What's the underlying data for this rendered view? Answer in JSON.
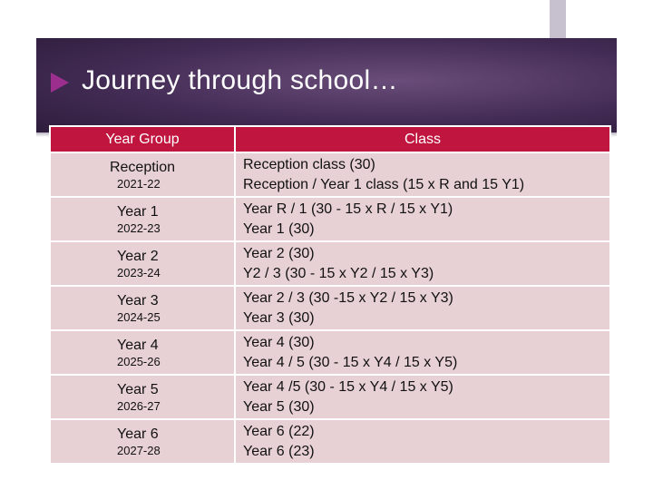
{
  "title": "Journey through school…",
  "table": {
    "headers": [
      "Year Group",
      "Class"
    ],
    "rows": [
      {
        "group": "Reception",
        "years": "2021-22",
        "classes": [
          "Reception class (30)",
          "Reception / Year 1 class (15 x R and 15 Y1)"
        ]
      },
      {
        "group": "Year 1",
        "years": "2022-23",
        "classes": [
          "Year R / 1 (30 - 15 x R / 15 x Y1)",
          "Year 1 (30)"
        ]
      },
      {
        "group": "Year 2",
        "years": "2023-24",
        "classes": [
          "Year 2 (30)",
          "Y2 / 3 (30 - 15 x Y2 / 15 x Y3)"
        ]
      },
      {
        "group": "Year 3",
        "years": "2024-25",
        "classes": [
          "Year 2 / 3 (30 -15 x Y2 / 15 x Y3)",
          "Year 3 (30)"
        ]
      },
      {
        "group": "Year 4",
        "years": "2025-26",
        "classes": [
          "Year 4 (30)",
          "Year 4 / 5 (30 - 15 x Y4 / 15 x Y5)"
        ]
      },
      {
        "group": "Year 5",
        "years": "2026-27",
        "classes": [
          "Year 4 /5 (30 - 15 x Y4 / 15 x Y5)",
          "Year 5 (30)"
        ]
      },
      {
        "group": "Year 6",
        "years": "2027-28",
        "classes": [
          "Year 6 (22)",
          "Year 6 (23)"
        ]
      }
    ]
  },
  "colors": {
    "header_bg": "#c0153f",
    "cell_bg": "#e8d1d5",
    "banner_bg": "#432c55",
    "arrow": "#9c2e8e"
  }
}
